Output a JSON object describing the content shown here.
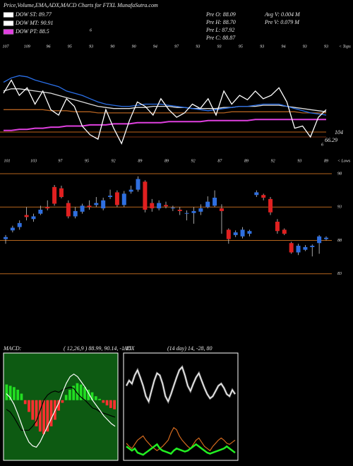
{
  "header": {
    "title": "Price,Volume,EMA,ADX,MACD Charts for FTXL MunafaSutra.com",
    "legend": [
      {
        "name": "DOW ST: 89.77",
        "color": "#ffffff"
      },
      {
        "name": "DOW MT: 90.91",
        "color": "#ffffff"
      },
      {
        "name": "DOW PT: 88.5",
        "color": "#e040e0"
      }
    ],
    "stats": [
      "Pre O: 88.09",
      "Pre H: 88.70",
      "Pre L: 87.92",
      "Pre C: 88.87",
      "Avg V: 0.004  M",
      "Pre V: 0.079 M"
    ],
    "mark": "6"
  },
  "chart_data": [
    {
      "type": "line",
      "tops_label": "< Tops",
      "lows_label": "< Lows",
      "annotations": [
        "104",
        "66.29",
        "6"
      ],
      "top_labels": [
        "107",
        "109",
        "96",
        "95",
        "93",
        "90",
        "90",
        "94",
        "97",
        "93",
        "93",
        "95",
        "93",
        "94",
        "93",
        "93"
      ],
      "bottom_labels": [
        "101",
        "103",
        "97",
        "95",
        "92",
        "89",
        "89",
        "92",
        "87",
        "89",
        "92",
        "93",
        "89"
      ],
      "ylim": [
        0,
        100
      ],
      "series": [
        {
          "color": "#b06020",
          "values": [
            45,
            45,
            45,
            45,
            45,
            45,
            44,
            44,
            44,
            43,
            43,
            43,
            42,
            42,
            42,
            42,
            42,
            42,
            42,
            42,
            42,
            42,
            42,
            42,
            42,
            42,
            42,
            42,
            42,
            43,
            43,
            43,
            43,
            43,
            43,
            43,
            43,
            43,
            42,
            42,
            42,
            42
          ]
        },
        {
          "color": "#e040e0",
          "values": [
            26,
            26,
            27,
            27,
            28,
            28,
            29,
            29,
            30,
            30,
            30,
            31,
            31,
            31,
            32,
            32,
            32,
            33,
            33,
            33,
            33,
            34,
            34,
            34,
            34,
            34,
            35,
            35,
            35,
            35,
            35,
            35,
            36,
            36,
            36,
            36,
            36,
            36,
            36,
            36,
            36,
            36
          ]
        },
        {
          "color": "#dddddd",
          "values": [
            62,
            64,
            64,
            63,
            62,
            61,
            60,
            58,
            56,
            54,
            52,
            50,
            48,
            47,
            46,
            46,
            46,
            47,
            47,
            48,
            48,
            48,
            47,
            47,
            46,
            46,
            46,
            46,
            47,
            47,
            48,
            48,
            48,
            49,
            49,
            49,
            48,
            47,
            46,
            45,
            44,
            43
          ]
        },
        {
          "color": "#2a6fe8",
          "values": [
            70,
            74,
            76,
            75,
            72,
            70,
            68,
            66,
            62,
            60,
            58,
            55,
            52,
            50,
            49,
            48,
            48,
            49,
            50,
            50,
            50,
            49,
            48,
            47,
            46,
            45,
            44,
            45,
            46,
            47,
            48,
            48,
            49,
            50,
            50,
            50,
            48,
            46,
            44,
            42,
            41,
            40
          ]
        },
        {
          "color": "#ffffff",
          "values": [
            60,
            72,
            58,
            65,
            50,
            62,
            45,
            40,
            55,
            48,
            30,
            22,
            18,
            45,
            28,
            14,
            35,
            52,
            48,
            40,
            55,
            45,
            38,
            42,
            50,
            46,
            55,
            40,
            62,
            50,
            58,
            54,
            62,
            55,
            58,
            65,
            52,
            28,
            30,
            20,
            38,
            45
          ]
        }
      ]
    },
    {
      "type": "candlestick",
      "up_color": "#2f6fe0",
      "down_color": "#e02020",
      "grid_color": "#b5651d",
      "ylim": [
        82,
        99
      ],
      "yticks": [
        98,
        93,
        88,
        83
      ],
      "open": [
        88.2,
        89.5,
        90.0,
        91.8,
        91.2,
        92,
        93,
        96,
        95.8,
        93.6,
        91.6,
        92.3,
        93.2,
        93.3,
        92.8,
        94.5,
        95.2,
        93.3,
        95.3,
        95.6,
        96.8,
        93.6,
        92.8,
        93.3,
        92.8,
        92.6,
        92,
        92.1,
        92.3,
        93,
        93.2,
        92.8,
        89.6,
        88.8,
        88.6,
        89,
        94.8,
        94.8,
        94.2,
        90.8,
        89.6,
        87.6,
        86.2,
        86.6,
        87,
        87.6,
        88.2
      ],
      "high": [
        88.8,
        90.2,
        91,
        93,
        92,
        93.2,
        94,
        96.3,
        96.2,
        94,
        93,
        93.5,
        94,
        94.5,
        94.4,
        95.6,
        95.5,
        95.4,
        96.2,
        97.6,
        97,
        94.2,
        94,
        93.8,
        93.2,
        93,
        92.5,
        93,
        93.4,
        94.6,
        95.5,
        93.4,
        89.8,
        89.5,
        90,
        89.6,
        95.5,
        95,
        94.5,
        91.2,
        89.8,
        87.8,
        87.5,
        87.3,
        87.4,
        88.8,
        88.6
      ],
      "low": [
        87.5,
        89.2,
        89.6,
        91,
        90.8,
        91.8,
        92.5,
        93.2,
        94.3,
        91.3,
        91.3,
        92,
        92.6,
        93,
        92.5,
        94.2,
        93,
        93,
        95,
        95.3,
        92.2,
        92.3,
        92.5,
        92.8,
        92.4,
        91.8,
        91,
        90.5,
        91.8,
        92.8,
        93,
        89,
        87.5,
        88.5,
        88.3,
        88.6,
        94.5,
        94,
        91.8,
        89,
        88.8,
        86,
        85.8,
        86.4,
        85.6,
        86,
        88
      ],
      "close": [
        88.5,
        89.9,
        90.6,
        91.5,
        91.6,
        92.6,
        92.8,
        93.5,
        94.5,
        91.6,
        92.4,
        93.2,
        93,
        93.6,
        94,
        94.7,
        93.3,
        95,
        95.6,
        97.2,
        92.6,
        92.8,
        93.6,
        93.1,
        92.9,
        92.4,
        92.1,
        92.4,
        92.8,
        93.8,
        94.4,
        92.4,
        88.2,
        89.2,
        89.6,
        89.4,
        95.2,
        94.4,
        92.2,
        89.4,
        89,
        86.2,
        87.2,
        87,
        87.2,
        88.6,
        88.4
      ]
    },
    {
      "type": "macd",
      "title": "MACD:",
      "subtitle": "( 12,26,9 ) 88.99, 90.14, -1.15",
      "background": "#0d5a12",
      "ylim": [
        -4.5,
        3.5
      ],
      "histogram": {
        "up_color": "#22dd22",
        "down_color": "#ff3030",
        "values": [
          1.2,
          1.1,
          1.0,
          0.8,
          0.5,
          -0.3,
          -0.9,
          -1.5,
          -2.0,
          -2.4,
          -2.6,
          -2.4,
          -2.0,
          -1.5,
          -0.8,
          -0.2,
          0.4,
          0.8,
          1.1,
          1.3,
          1.2,
          1.0,
          0.8,
          0.6,
          0.3,
          0.1,
          -0.2,
          -0.4,
          -0.6,
          -0.7
        ]
      },
      "series": [
        {
          "color": "#000000",
          "values": [
            -0.7,
            -0.9,
            -1.3,
            -1.8,
            -2.3,
            -2.3,
            -2.3,
            -2.0,
            -1.6,
            -0.8,
            0,
            0.4,
            0.6,
            0.7,
            0.6,
            0.8,
            0.9,
            1.0,
            0.9,
            0.5,
            0.2,
            0,
            -0.3,
            -0.6,
            -0.7,
            -0.9,
            -1.0,
            -1.1,
            -1.2,
            -1.3
          ]
        },
        {
          "color": "#ffffff",
          "values": [
            0.5,
            0.2,
            -0.3,
            -1.0,
            -1.8,
            -2.6,
            -3.2,
            -3.5,
            -3.6,
            -3.2,
            -2.6,
            -2.0,
            -1.4,
            -0.8,
            -0.2,
            0.6,
            1.3,
            1.8,
            2.0,
            1.8,
            1.4,
            1.0,
            0.5,
            0.0,
            -0.4,
            -0.8,
            -1.2,
            -1.5,
            -1.8,
            -2.0
          ]
        }
      ]
    },
    {
      "type": "adx",
      "title": "ADX",
      "subtitle": "(14 day) 14, -28, 80",
      "background": "#000000",
      "ylim": [
        0,
        100
      ],
      "series": [
        {
          "color": "#ffffff",
          "values": [
            70,
            75,
            72,
            80,
            85,
            78,
            70,
            60,
            55,
            65,
            75,
            82,
            80,
            72,
            60,
            55,
            62,
            70,
            78,
            85,
            88,
            80,
            70,
            65,
            72,
            78,
            82,
            75,
            68,
            62,
            58,
            60,
            65,
            70,
            72,
            68,
            62,
            60,
            66,
            62
          ]
        },
        {
          "color": "#d2691e",
          "values": [
            15,
            12,
            10,
            14,
            18,
            20,
            22,
            18,
            15,
            12,
            10,
            8,
            10,
            12,
            15,
            18,
            25,
            30,
            28,
            22,
            18,
            15,
            12,
            10,
            14,
            18,
            20,
            16,
            12,
            10,
            8,
            12,
            15,
            18,
            20,
            18,
            15,
            14,
            16,
            18
          ]
        },
        {
          "color": "#22ee22",
          "values": [
            12,
            10,
            8,
            10,
            6,
            5,
            4,
            6,
            8,
            10,
            12,
            14,
            10,
            8,
            7,
            6,
            5,
            8,
            10,
            9,
            8,
            7,
            8,
            10,
            12,
            14,
            12,
            10,
            8,
            6,
            5,
            6,
            7,
            8,
            9,
            10,
            12,
            10,
            8,
            6
          ]
        }
      ]
    }
  ]
}
